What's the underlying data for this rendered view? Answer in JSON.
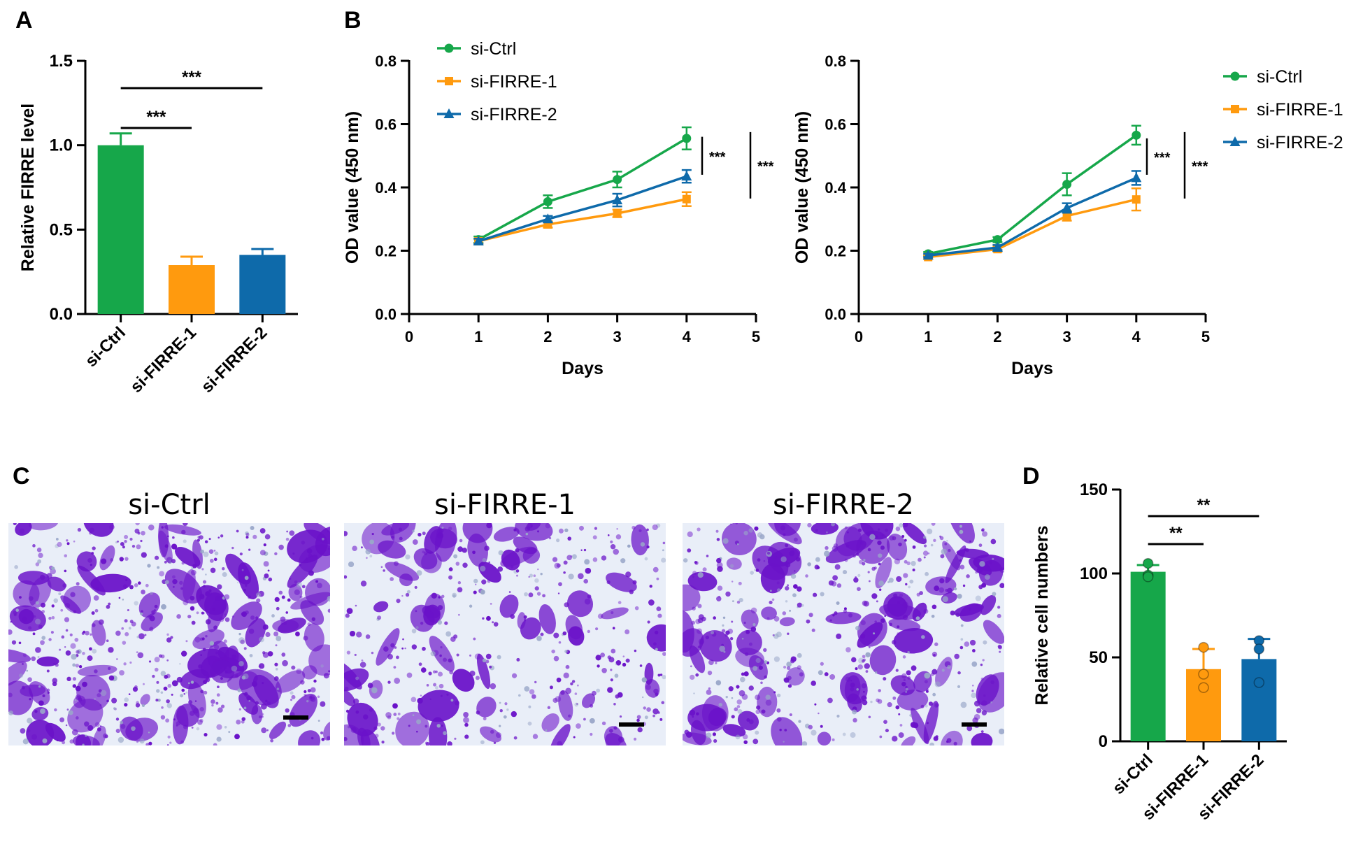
{
  "colors": {
    "green": "#16a74a",
    "orange": "#ff9a0e",
    "blue": "#0e6aaa",
    "stain_dark": "#6a12c9",
    "stain_light": "#e9eef8"
  },
  "panels": {
    "A": "A",
    "B": "B",
    "C": "C",
    "D": "D"
  },
  "chart_data": [
    {
      "id": "A",
      "type": "bar",
      "title": "",
      "ylabel": "Relative FIRRE  level",
      "xlabel": "",
      "categories": [
        "si-Ctrl",
        "si-FIRRE-1",
        "si-FIRRE-2"
      ],
      "values": [
        1.0,
        0.29,
        0.35
      ],
      "errors": [
        0.07,
        0.05,
        0.035
      ],
      "ylim": [
        0,
        1.5
      ],
      "yticks": [
        0.0,
        0.5,
        1.0,
        1.5
      ],
      "ytick_labels": [
        "0.0",
        "0.5",
        "1.0",
        "1.5"
      ],
      "significance": [
        {
          "from": 0,
          "to": 1,
          "label": "***"
        },
        {
          "from": 0,
          "to": 2,
          "label": "***"
        }
      ]
    },
    {
      "id": "B1",
      "type": "line",
      "xlabel": "Days",
      "ylabel": "OD value (450 nm)",
      "xlim": [
        0,
        5
      ],
      "ylim": [
        0,
        0.8
      ],
      "xticks": [
        0,
        1,
        2,
        3,
        4,
        5
      ],
      "yticks": [
        0.0,
        0.2,
        0.4,
        0.6,
        0.8
      ],
      "ytick_labels": [
        "0.0",
        "0.2",
        "0.4",
        "0.6",
        "0.8"
      ],
      "legend": "top-left",
      "series": [
        {
          "name": "si-Ctrl",
          "marker": "circle",
          "x": [
            1,
            2,
            3,
            4
          ],
          "y": [
            0.235,
            0.355,
            0.425,
            0.555
          ],
          "err": [
            0.01,
            0.02,
            0.025,
            0.035
          ]
        },
        {
          "name": "si-FIRRE-1",
          "marker": "square",
          "x": [
            1,
            2,
            3,
            4
          ],
          "y": [
            0.23,
            0.283,
            0.318,
            0.363
          ],
          "err": [
            0.008,
            0.01,
            0.012,
            0.022
          ]
        },
        {
          "name": "si-FIRRE-2",
          "marker": "triangle",
          "x": [
            1,
            2,
            3,
            4
          ],
          "y": [
            0.23,
            0.3,
            0.36,
            0.435
          ],
          "err": [
            0.008,
            0.01,
            0.02,
            0.02
          ]
        }
      ],
      "significance": [
        {
          "label": "***",
          "y_top": 0.56,
          "y_bottom": 0.44
        },
        {
          "label": "***",
          "y_top": 0.575,
          "y_bottom": 0.365
        }
      ]
    },
    {
      "id": "B2",
      "type": "line",
      "xlabel": "Days",
      "ylabel": "OD value (450 nm)",
      "xlim": [
        0,
        5
      ],
      "ylim": [
        0,
        0.8
      ],
      "xticks": [
        0,
        1,
        2,
        3,
        4,
        5
      ],
      "yticks": [
        0.0,
        0.2,
        0.4,
        0.6,
        0.8
      ],
      "ytick_labels": [
        "0.0",
        "0.2",
        "0.4",
        "0.6",
        "0.8"
      ],
      "legend": "right",
      "series": [
        {
          "name": "si-Ctrl",
          "marker": "circle",
          "x": [
            1,
            2,
            3,
            4
          ],
          "y": [
            0.19,
            0.235,
            0.41,
            0.565
          ],
          "err": [
            0.006,
            0.008,
            0.035,
            0.03
          ]
        },
        {
          "name": "si-FIRRE-1",
          "marker": "square",
          "x": [
            1,
            2,
            3,
            4
          ],
          "y": [
            0.18,
            0.205,
            0.31,
            0.362
          ],
          "err": [
            0.005,
            0.008,
            0.015,
            0.035
          ]
        },
        {
          "name": "si-FIRRE-2",
          "marker": "triangle",
          "x": [
            1,
            2,
            3,
            4
          ],
          "y": [
            0.185,
            0.21,
            0.335,
            0.43
          ],
          "err": [
            0.005,
            0.008,
            0.015,
            0.022
          ]
        }
      ],
      "significance": [
        {
          "label": "***",
          "y_top": 0.555,
          "y_bottom": 0.44
        },
        {
          "label": "***",
          "y_top": 0.575,
          "y_bottom": 0.365
        }
      ]
    },
    {
      "id": "D",
      "type": "bar",
      "title": "",
      "ylabel": "Relative cell numbers",
      "xlabel": "",
      "categories": [
        "si-Ctrl",
        "si-FIRRE-1",
        "si-FIRRE-2"
      ],
      "values": [
        101,
        43,
        49
      ],
      "errors": [
        4,
        12,
        12
      ],
      "points": [
        [
          106,
          99,
          98
        ],
        [
          56,
          40,
          32
        ],
        [
          60,
          55,
          35
        ]
      ],
      "ylim": [
        0,
        150
      ],
      "yticks": [
        0,
        50,
        100,
        150
      ],
      "ytick_labels": [
        "0",
        "50",
        "100",
        "150"
      ],
      "significance": [
        {
          "from": 0,
          "to": 1,
          "label": "**"
        },
        {
          "from": 0,
          "to": 2,
          "label": "**"
        }
      ]
    }
  ],
  "micrographs": [
    {
      "title": "si-Ctrl",
      "density": 0.62
    },
    {
      "title": "si-FIRRE-1",
      "density": 0.44
    },
    {
      "title": "si-FIRRE-2",
      "density": 0.55
    }
  ]
}
